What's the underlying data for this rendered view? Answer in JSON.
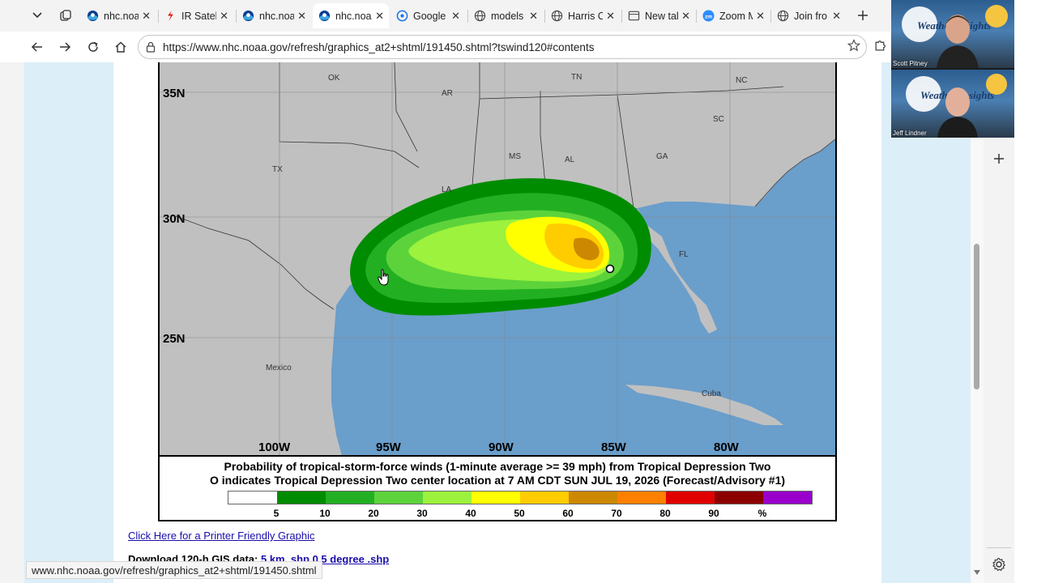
{
  "browser": {
    "tabs": [
      {
        "title": "nhc.noaa",
        "icon": "noaa-icon"
      },
      {
        "title": "IR Satelli",
        "icon": "satellite-icon"
      },
      {
        "title": "nhc.noaa",
        "icon": "noaa-icon"
      },
      {
        "title": "nhc.noaa",
        "icon": "noaa-icon",
        "active": true
      },
      {
        "title": "Google",
        "icon": "google-icon"
      },
      {
        "title": "models",
        "icon": "globe-icon"
      },
      {
        "title": "Harris C",
        "icon": "globe-icon"
      },
      {
        "title": "New tal",
        "icon": "newtab-icon"
      },
      {
        "title": "Zoom M",
        "icon": "zoom-icon"
      },
      {
        "title": "Join fro",
        "icon": "globe-icon"
      }
    ],
    "url": "https://www.nhc.noaa.gov/refresh/graphics_at2+shtml/191450.shtml?tswind120#contents",
    "status_url": "www.nhc.noaa.gov/refresh/graphics_at2+shtml/191450.shtml"
  },
  "map": {
    "state_labels": [
      "OK",
      "AR",
      "TN",
      "NC",
      "SC",
      "MS",
      "AL",
      "GA",
      "TX",
      "LA",
      "FL"
    ],
    "place_labels": [
      "Mexico",
      "Cuba"
    ],
    "lat_labels": [
      "35N",
      "30N",
      "25N"
    ],
    "lon_labels": [
      "100W",
      "95W",
      "90W",
      "85W",
      "80W"
    ],
    "colors": {
      "ocean": "#6a9ecb",
      "land": "#c0c0c0",
      "p5": "#008c00",
      "p10": "#22b022",
      "p20": "#5dd33b",
      "p30": "#9cf23c",
      "p40": "#ffff00",
      "p50": "#ffcc00",
      "p60": "#cc8800"
    }
  },
  "legend": {
    "caption_line1": "Probability of tropical-storm-force winds (1-minute average >= 39 mph) from Tropical Depression Two",
    "caption_line2": "O indicates Tropical Depression Two center location at 7 AM CDT SUN JUL 19, 2026 (Forecast/Advisory #1)",
    "scale_colors": [
      "#ffffff",
      "#008c00",
      "#22b022",
      "#5dd33b",
      "#9cf23c",
      "#ffff00",
      "#ffcc00",
      "#cc8800",
      "#ff8000",
      "#e00000",
      "#8c0000",
      "#9900cc"
    ],
    "scale_labels": [
      "5",
      "10",
      "20",
      "30",
      "40",
      "50",
      "60",
      "70",
      "80",
      "90",
      "%"
    ]
  },
  "page": {
    "printer_link": "Click Here for a Printer Friendly Graphic",
    "gis_label": "Download 120-h GIS data:",
    "gis_link1": "5 km .shp",
    "gis_link2": "0.5 degree .shp"
  },
  "video_call": {
    "participants": [
      "Scott Pitney",
      "Jeff Lindner"
    ],
    "background_text": "Weather Insights"
  }
}
